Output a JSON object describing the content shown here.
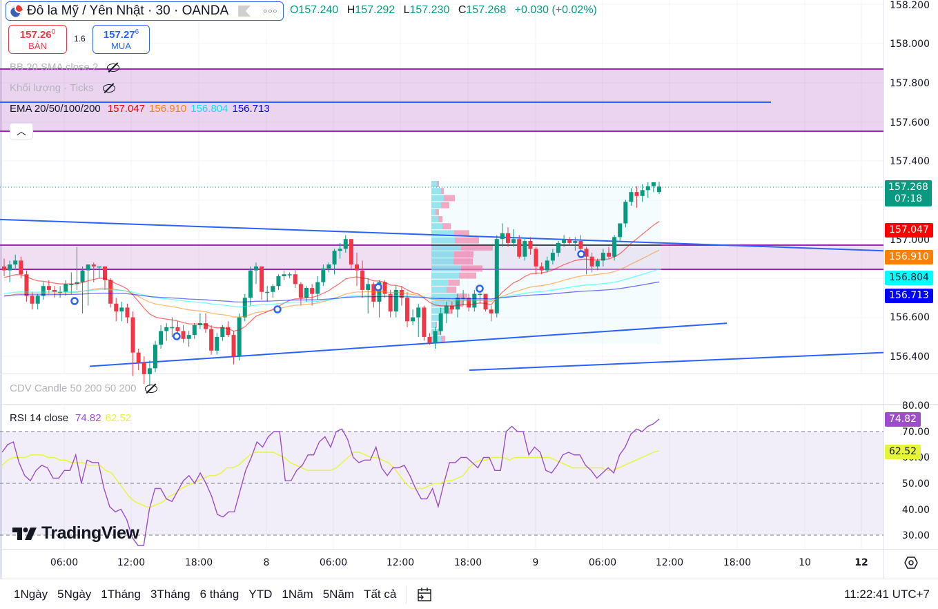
{
  "header": {
    "symbol_title": "Đô la Mỹ / Yên Nhật · 30 · OANDA",
    "ohlc": {
      "o_label": "O",
      "o": "157.240",
      "h_label": "H",
      "h": "157.292",
      "l_label": "L",
      "l": "157.230",
      "c_label": "C",
      "c": "157.268",
      "change": "+0.030 (+0.02%)"
    },
    "sell": {
      "price_main": "157.26",
      "price_sup": "0",
      "label": "BÁN"
    },
    "spread": "1.6",
    "buy": {
      "price_main": "157.27",
      "price_sup": "6",
      "label": "MUA"
    }
  },
  "indicators": {
    "bb": "BB 20 SMA close 2",
    "volume": "Khối lượng · Ticks",
    "ema_label": "EMA 20/50/100/200",
    "ema_values": [
      "157.047",
      "156.910",
      "156.804",
      "156.713"
    ],
    "cdv": "CDV Candle 50 200 50 200",
    "rsi_label": "RSI 14 close",
    "rsi_values": [
      "74.82",
      "62.52"
    ]
  },
  "colors": {
    "up": "#089981",
    "down": "#f23645",
    "ema20": "#ff0000",
    "ema50": "#ff7f00",
    "ema100": "#00ffff",
    "ema200": "#0000ff",
    "rsi": "#9c4dcc",
    "rsi_ma": "#e6f53a",
    "trend": "#2962ff",
    "zone": "#9c27b0"
  },
  "price_axis": {
    "ticks": [
      "158.200",
      "158.000",
      "157.800",
      "157.600",
      "157.400",
      "157.000",
      "156.600",
      "156.400"
    ],
    "last_price": "157.268",
    "countdown": "07:18",
    "ema_tags": [
      "157.047",
      "156.910",
      "156.804",
      "156.713"
    ]
  },
  "rsi_axis": {
    "ticks": [
      "80.00",
      "70.00",
      "60.00",
      "50.00",
      "40.00",
      "30.00"
    ],
    "tags": [
      "74.82",
      "62.52"
    ]
  },
  "time_axis": {
    "labels": [
      "06:00",
      "12:00",
      "18:00",
      "8",
      "06:00",
      "12:00",
      "18:00",
      "9",
      "06:00",
      "12:00",
      "18:00",
      "10",
      "12"
    ]
  },
  "bottom_bar": {
    "ranges": [
      "1Ngày",
      "5Ngày",
      "1Tháng",
      "3Tháng",
      "6 tháng",
      "YTD",
      "1Năm",
      "5Năm",
      "Tất cả"
    ],
    "clock": "11:22:41 UTC+7"
  },
  "logo": "TradingView",
  "chart_data": {
    "type": "candlestick",
    "title": "Đô la Mỹ / Yên Nhật · 30 · OANDA",
    "interval": "30m",
    "ylim": [
      156.3,
      158.25
    ],
    "x_labels": [
      "06:00",
      "12:00",
      "18:00",
      "8",
      "06:00",
      "12:00",
      "18:00",
      "9",
      "06:00",
      "12:00",
      "18:00",
      "10",
      "12"
    ],
    "last": {
      "open": 157.24,
      "high": 157.292,
      "low": 157.23,
      "close": 157.268,
      "change": 0.03,
      "change_pct": 0.02
    },
    "candles": [
      [
        156.86,
        156.9,
        156.81,
        156.84
      ],
      [
        156.84,
        156.89,
        156.78,
        156.87
      ],
      [
        156.87,
        156.92,
        156.85,
        156.89
      ],
      [
        156.89,
        156.91,
        156.8,
        156.82
      ],
      [
        156.82,
        156.84,
        156.68,
        156.71
      ],
      [
        156.71,
        156.73,
        156.64,
        156.67
      ],
      [
        156.67,
        156.72,
        156.64,
        156.71
      ],
      [
        156.71,
        156.78,
        156.69,
        156.76
      ],
      [
        156.76,
        156.79,
        156.72,
        156.74
      ],
      [
        156.74,
        156.76,
        156.7,
        156.73
      ],
      [
        156.73,
        156.76,
        156.7,
        156.73
      ],
      [
        156.73,
        156.79,
        156.71,
        156.77
      ],
      [
        156.77,
        156.83,
        156.72,
        156.77
      ],
      [
        156.77,
        156.96,
        156.74,
        156.78
      ],
      [
        156.78,
        156.86,
        156.62,
        156.84
      ],
      [
        156.84,
        156.87,
        156.66,
        156.87
      ],
      [
        156.87,
        156.88,
        156.78,
        156.86
      ],
      [
        156.86,
        156.86,
        156.8,
        156.86
      ],
      [
        156.86,
        156.86,
        156.74,
        156.79
      ],
      [
        156.79,
        156.8,
        156.65,
        156.67
      ],
      [
        156.67,
        156.7,
        156.58,
        156.63
      ],
      [
        156.63,
        156.68,
        156.58,
        156.65
      ],
      [
        156.65,
        156.67,
        156.57,
        156.6
      ],
      [
        156.6,
        156.63,
        156.3,
        156.42
      ],
      [
        156.42,
        156.44,
        156.33,
        156.37
      ],
      [
        156.37,
        156.4,
        156.26,
        156.31
      ],
      [
        156.31,
        156.38,
        156.25,
        156.34
      ],
      [
        156.34,
        156.48,
        156.32,
        156.46
      ],
      [
        156.46,
        156.56,
        156.44,
        156.53
      ],
      [
        156.53,
        156.57,
        156.48,
        156.55
      ],
      [
        156.55,
        156.6,
        156.5,
        156.55
      ],
      [
        156.55,
        156.58,
        156.5,
        156.53
      ],
      [
        156.53,
        156.56,
        156.47,
        156.49
      ],
      [
        156.49,
        156.53,
        156.45,
        156.51
      ],
      [
        156.51,
        156.57,
        156.49,
        156.56
      ],
      [
        156.56,
        156.62,
        156.54,
        156.57
      ],
      [
        156.57,
        156.62,
        156.52,
        156.54
      ],
      [
        156.54,
        156.56,
        156.41,
        156.43
      ],
      [
        156.43,
        156.52,
        156.41,
        156.5
      ],
      [
        156.5,
        156.56,
        156.48,
        156.55
      ],
      [
        156.55,
        156.58,
        156.5,
        156.51
      ],
      [
        156.51,
        156.53,
        156.36,
        156.4
      ],
      [
        156.4,
        156.62,
        156.38,
        156.6
      ],
      [
        156.6,
        156.72,
        156.58,
        156.7
      ],
      [
        156.7,
        156.86,
        156.66,
        156.84
      ],
      [
        156.84,
        156.88,
        156.77,
        156.86
      ],
      [
        156.86,
        156.86,
        156.69,
        156.73
      ],
      [
        156.73,
        156.76,
        156.68,
        156.73
      ],
      [
        156.73,
        156.77,
        156.7,
        156.76
      ],
      [
        156.76,
        156.82,
        156.74,
        156.81
      ],
      [
        156.81,
        156.84,
        156.79,
        156.82
      ],
      [
        156.82,
        156.83,
        156.8,
        156.82
      ],
      [
        156.82,
        156.85,
        156.75,
        156.77
      ],
      [
        156.77,
        156.78,
        156.66,
        156.7
      ],
      [
        156.7,
        156.76,
        156.68,
        156.75
      ],
      [
        156.75,
        156.77,
        156.66,
        156.72
      ],
      [
        156.72,
        156.81,
        156.69,
        156.78
      ],
      [
        156.78,
        156.87,
        156.76,
        156.85
      ],
      [
        156.85,
        156.88,
        156.83,
        156.87
      ],
      [
        156.87,
        156.95,
        156.82,
        156.94
      ],
      [
        156.94,
        156.98,
        156.9,
        156.95
      ],
      [
        156.95,
        157.02,
        156.93,
        157.0
      ],
      [
        157.0,
        157.0,
        156.85,
        156.87
      ],
      [
        156.87,
        156.93,
        156.76,
        156.84
      ],
      [
        156.84,
        156.89,
        156.7,
        156.74
      ],
      [
        156.74,
        156.8,
        156.62,
        156.77
      ],
      [
        156.77,
        156.78,
        156.65,
        156.68
      ],
      [
        156.68,
        156.79,
        156.6,
        156.78
      ],
      [
        156.78,
        156.79,
        156.7,
        156.72
      ],
      [
        156.72,
        156.74,
        156.6,
        156.63
      ],
      [
        156.63,
        156.76,
        156.6,
        156.74
      ],
      [
        156.74,
        156.76,
        156.66,
        156.7
      ],
      [
        156.7,
        156.73,
        156.55,
        156.58
      ],
      [
        156.58,
        156.64,
        156.56,
        156.6
      ],
      [
        156.6,
        156.67,
        156.5,
        156.65
      ],
      [
        156.65,
        156.66,
        156.48,
        156.5
      ],
      [
        156.5,
        156.52,
        156.46,
        156.47
      ],
      [
        156.47,
        156.55,
        156.44,
        156.53
      ],
      [
        156.53,
        156.65,
        156.51,
        156.62
      ],
      [
        156.62,
        156.68,
        156.57,
        156.66
      ],
      [
        156.66,
        156.68,
        156.62,
        156.64
      ],
      [
        156.64,
        156.72,
        156.6,
        156.7
      ],
      [
        156.7,
        156.74,
        156.66,
        156.7
      ],
      [
        156.7,
        156.72,
        156.63,
        156.65
      ],
      [
        156.65,
        156.74,
        156.63,
        156.72
      ],
      [
        156.72,
        156.73,
        156.67,
        156.72
      ],
      [
        156.72,
        156.71,
        156.63,
        156.64
      ],
      [
        156.64,
        156.66,
        156.58,
        156.62
      ],
      [
        156.62,
        157.02,
        156.6,
        157.0
      ],
      [
        157.0,
        157.08,
        156.96,
        157.03
      ],
      [
        157.03,
        157.06,
        156.96,
        156.98
      ],
      [
        156.98,
        157.05,
        156.96,
        157.0
      ],
      [
        157.0,
        157.02,
        156.9,
        156.91
      ],
      [
        156.91,
        157.0,
        156.89,
        156.99
      ],
      [
        156.99,
        157.01,
        156.92,
        156.95
      ],
      [
        156.95,
        156.96,
        156.82,
        156.86
      ],
      [
        156.86,
        156.88,
        156.82,
        156.84
      ],
      [
        156.84,
        156.91,
        156.83,
        156.89
      ],
      [
        156.89,
        156.95,
        156.87,
        156.93
      ],
      [
        156.93,
        156.99,
        156.91,
        156.98
      ],
      [
        156.98,
        157.02,
        156.96,
        157.0
      ],
      [
        157.0,
        157.01,
        156.97,
        156.98
      ],
      [
        156.98,
        157.01,
        156.94,
        156.99
      ],
      [
        156.99,
        157.02,
        156.94,
        156.95
      ],
      [
        156.95,
        156.96,
        156.82,
        156.91
      ],
      [
        156.91,
        156.93,
        156.83,
        156.86
      ],
      [
        156.86,
        156.9,
        156.84,
        156.89
      ],
      [
        156.89,
        156.95,
        156.86,
        156.93
      ],
      [
        156.93,
        156.96,
        156.9,
        156.91
      ],
      [
        156.91,
        157.02,
        156.89,
        157.01
      ],
      [
        157.01,
        157.08,
        156.99,
        157.08
      ],
      [
        157.08,
        157.2,
        157.06,
        157.19
      ],
      [
        157.19,
        157.26,
        157.17,
        157.24
      ],
      [
        157.24,
        157.27,
        157.16,
        157.22
      ],
      [
        157.22,
        157.28,
        157.19,
        157.25
      ],
      [
        157.25,
        157.29,
        157.21,
        157.27
      ],
      [
        157.27,
        157.29,
        157.24,
        157.29
      ],
      [
        157.24,
        157.292,
        157.23,
        157.268
      ]
    ],
    "ema_latest": {
      "ema20": 157.047,
      "ema50": 156.91,
      "ema100": 156.804,
      "ema200": 156.713
    },
    "zones": [
      {
        "type": "rectangle",
        "top": 157.87,
        "bottom": 157.55,
        "color": "#9c27b0"
      },
      {
        "type": "rectangle",
        "top": 156.97,
        "bottom": 156.89,
        "color": "#9c27b0"
      }
    ],
    "horizontal_lines": [
      {
        "price": 157.71,
        "color": "#2962ff"
      }
    ],
    "trendlines": [
      {
        "from": [
          0,
          157.1
        ],
        "to": [
          1280,
          156.94
        ]
      },
      {
        "from": [
          130,
          156.35
        ],
        "to": [
          1053,
          156.57
        ]
      },
      {
        "from": [
          680,
          156.33
        ],
        "to": [
          1280,
          156.42
        ]
      }
    ],
    "rsi": {
      "period": 14,
      "latest": 74.82,
      "ma_latest": 62.52,
      "ylim": [
        28,
        82
      ],
      "bands": [
        30,
        50,
        70
      ],
      "series": [
        62,
        65,
        66,
        58,
        53,
        51,
        55,
        57,
        56,
        52,
        52,
        55,
        55,
        61,
        50,
        59,
        58,
        58,
        48,
        41,
        39,
        40,
        36,
        29,
        26,
        26,
        40,
        48,
        48,
        44,
        43,
        47,
        51,
        53,
        50,
        54,
        50,
        45,
        38,
        37,
        39,
        39,
        47,
        55,
        60,
        66,
        64,
        68,
        70,
        70,
        51,
        51,
        55,
        57,
        61,
        61,
        66,
        68,
        64,
        70,
        71,
        67,
        60,
        58,
        59,
        59,
        64,
        56,
        53,
        56,
        56,
        57,
        53,
        48,
        44,
        44,
        48,
        41,
        50,
        58,
        58,
        60,
        60,
        58,
        56,
        60,
        60,
        55,
        55,
        70,
        72,
        70,
        70,
        61,
        64,
        62,
        55,
        54,
        57,
        61,
        62,
        61,
        61,
        57,
        55,
        52,
        54,
        56,
        54,
        61,
        64,
        69,
        71,
        70,
        72,
        73,
        74.82
      ],
      "ma_series": [
        57,
        59,
        60,
        60,
        60,
        61,
        61,
        61,
        60,
        60,
        59,
        59,
        58,
        58,
        58,
        57,
        57,
        57,
        55,
        54,
        51,
        48,
        45,
        43,
        42,
        41,
        41,
        42,
        43,
        45,
        46,
        48,
        49,
        50,
        51,
        52,
        53,
        53,
        54,
        56,
        56,
        57,
        59,
        61,
        62,
        62,
        62,
        62,
        61,
        60,
        58,
        57,
        56,
        55,
        55,
        55,
        55,
        55,
        56,
        58,
        60,
        62,
        62,
        61,
        60,
        60,
        59,
        58,
        56,
        53,
        50,
        48,
        48,
        48,
        49,
        50,
        50,
        51,
        51,
        52,
        53,
        56,
        58,
        59,
        59,
        60,
        60,
        60,
        59,
        60,
        60,
        60,
        60,
        60,
        60,
        60,
        59,
        58,
        57,
        56,
        56,
        56,
        56,
        56,
        56,
        55,
        55,
        56,
        57,
        58,
        59,
        60,
        61,
        62,
        62.52
      ]
    }
  }
}
